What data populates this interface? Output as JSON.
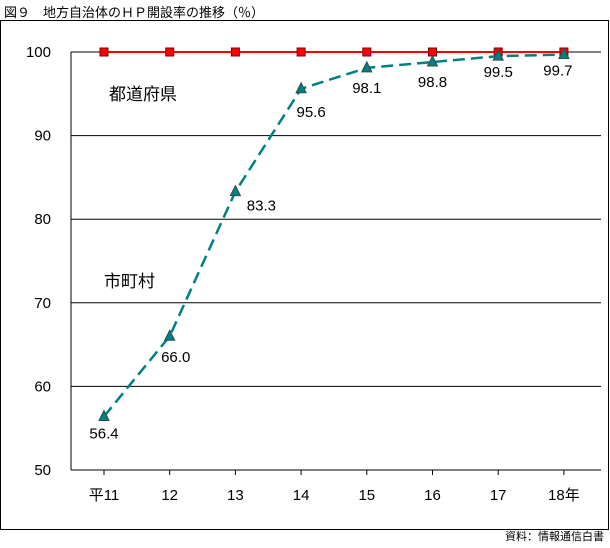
{
  "title": "図９　地方自治体のＨＰ開設率の推移（％）",
  "source": "資料：情報通信白書",
  "colors": {
    "prefecture": "#ff0000",
    "municipality": "#008080",
    "marker": "#2f4f4f",
    "marker_red": "#ff0000"
  },
  "chart_data": {
    "type": "line",
    "categories": [
      "平11",
      "12",
      "13",
      "14",
      "15",
      "16",
      "17",
      "18年"
    ],
    "ylim": [
      50,
      100
    ],
    "yticks": [
      "50",
      "60",
      "70",
      "80",
      "90",
      "100"
    ],
    "grid": true,
    "series": [
      {
        "name": "都道府県",
        "values": [
          100,
          100,
          100,
          100,
          100,
          100,
          100,
          100
        ],
        "style": "solid",
        "labels": []
      },
      {
        "name": "市町村",
        "values": [
          56.4,
          66.0,
          83.3,
          95.6,
          98.1,
          98.8,
          99.5,
          99.7
        ],
        "style": "dashed",
        "labels": [
          "56.4",
          "66.0",
          "83.3",
          "95.6",
          "98.1",
          "98.8",
          "99.5",
          "99.7"
        ]
      }
    ]
  }
}
